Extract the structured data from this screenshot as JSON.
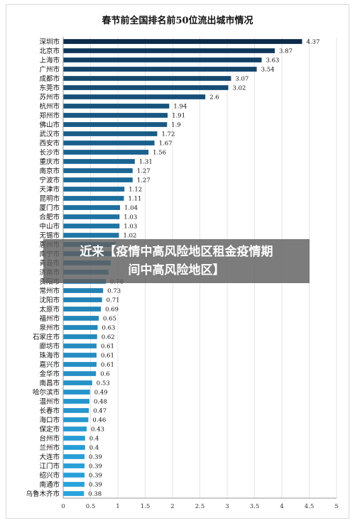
{
  "chart_data": {
    "type": "bar",
    "orientation": "horizontal",
    "title": "春节前全国排名前50位流出城市情况",
    "xlim": [
      0,
      5
    ],
    "xticks": [
      "0",
      "0.5",
      "1",
      "1.5",
      "2",
      "2.5",
      "3",
      "3.5",
      "4",
      "4.5",
      "5"
    ],
    "grid": true,
    "categories": [
      "深圳市",
      "北京市",
      "上海市",
      "广州市",
      "成都市",
      "东莞市",
      "苏州市",
      "杭州市",
      "郑州市",
      "佛山市",
      "武汉市",
      "西安市",
      "长沙市",
      "重庆市",
      "南京市",
      "宁波市",
      "天津市",
      "昆明市",
      "厦门市",
      "合肥市",
      "中山市",
      "无锡市",
      "惠州市",
      "南宁市",
      "青岛市",
      "济南市",
      "贵阳市",
      "常州市",
      "沈阳市",
      "太原市",
      "福州市",
      "泉州市",
      "石家庄市",
      "廊坊市",
      "珠海市",
      "嘉兴市",
      "金华市",
      "南昌市",
      "哈尔滨市",
      "温州市",
      "长春市",
      "海口市",
      "保定市",
      "台州市",
      "兰州市",
      "大连市",
      "江门市",
      "绍兴市",
      "南通市",
      "乌鲁木齐市"
    ],
    "values": [
      4.37,
      3.87,
      3.63,
      3.54,
      3.07,
      3.02,
      2.6,
      1.94,
      1.91,
      1.9,
      1.72,
      1.67,
      1.56,
      1.31,
      1.27,
      1.27,
      1.12,
      1.11,
      1.04,
      1.03,
      1.03,
      1.02,
      0.96,
      0.9,
      0.87,
      0.83,
      0.78,
      0.73,
      0.71,
      0.69,
      0.65,
      0.63,
      0.62,
      0.61,
      0.61,
      0.61,
      0.6,
      0.53,
      0.49,
      0.48,
      0.47,
      0.46,
      0.43,
      0.4,
      0.4,
      0.39,
      0.39,
      0.39,
      0.39,
      0.38
    ],
    "value_labels": [
      "4.37",
      "3.87",
      "3.63",
      "3.54",
      "3.07",
      "3.02",
      "2.6",
      "1.94",
      "1.91",
      "1.9",
      "1.72",
      "1.67",
      "1.56",
      "1.31",
      "1.27",
      "1.27",
      "1.12",
      "1.11",
      "1.04",
      "1.03",
      "1.03",
      "1.02",
      "",
      "",
      "",
      "",
      "0.78",
      "0.73",
      "0.71",
      "0.69",
      "0.65",
      "0.63",
      "0.62",
      "0.61",
      "0.61",
      "0.61",
      "0.6",
      "0.53",
      "0.49",
      "0.48",
      "0.47",
      "0.46",
      "0.43",
      "0.4",
      "0.4",
      "0.39",
      "0.39",
      "0.39",
      "0.39",
      "0.38"
    ],
    "colors": {
      "dark": "#0d2a4a",
      "light": "#29a3dd"
    }
  },
  "banner": {
    "line1": "近来【疫情中高风险地区租金疫情期",
    "line2": "间中高风险地区】"
  }
}
